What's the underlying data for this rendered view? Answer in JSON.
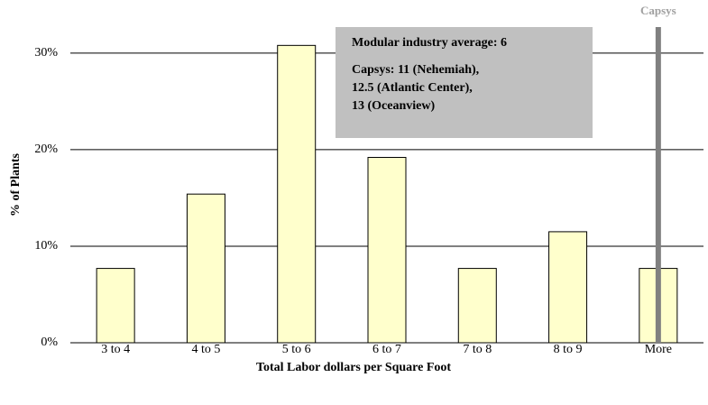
{
  "chart_data": {
    "type": "bar",
    "categories": [
      "3 to 4",
      "4 to 5",
      "5 to 6",
      "6 to 7",
      "7 to 8",
      "8 to 9",
      "More"
    ],
    "values": [
      7.7,
      15.4,
      30.8,
      19.2,
      7.7,
      11.5,
      7.7
    ],
    "color": "#ffffcc",
    "x_label": "Total Labor dollars per Square Foot",
    "y_label": "% of Plants",
    "ylim": [
      0,
      32.7
    ],
    "yticks": [
      {
        "value": 0,
        "label": "0%"
      },
      {
        "value": 10,
        "label": "10%"
      },
      {
        "value": 20,
        "label": "20%"
      },
      {
        "value": 30,
        "label": "30%"
      }
    ],
    "grid": true,
    "marker_label": "Capsys",
    "annotation": [
      "Modular industry average: 6",
      "Capsys: 11 (Nehemiah),",
      "12.5 (Atlantic Center),",
      "13 (Oceanview)"
    ]
  }
}
